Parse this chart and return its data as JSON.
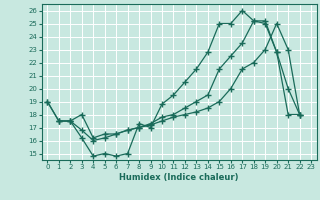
{
  "xlabel": "Humidex (Indice chaleur)",
  "bg_color": "#c8e8e0",
  "line_color": "#1a6b5a",
  "grid_color": "#ffffff",
  "xlim": [
    -0.5,
    23.5
  ],
  "ylim": [
    14.5,
    26.5
  ],
  "yticks": [
    15,
    16,
    17,
    18,
    19,
    20,
    21,
    22,
    23,
    24,
    25,
    26
  ],
  "xticks": [
    0,
    1,
    2,
    3,
    4,
    5,
    6,
    7,
    8,
    9,
    10,
    11,
    12,
    13,
    14,
    15,
    16,
    17,
    18,
    19,
    20,
    21,
    22,
    23
  ],
  "line1_x": [
    0,
    1,
    2,
    3,
    4,
    5,
    6,
    7,
    8,
    9,
    10,
    11,
    12,
    13,
    14,
    15,
    16,
    17,
    18,
    19,
    20,
    21,
    22
  ],
  "line1_y": [
    19.0,
    17.5,
    17.5,
    16.2,
    14.8,
    15.0,
    14.8,
    15.0,
    17.3,
    17.0,
    18.8,
    19.5,
    20.5,
    21.5,
    22.8,
    25.0,
    25.0,
    26.0,
    25.2,
    25.2,
    22.8,
    20.0,
    18.0
  ],
  "line2_x": [
    0,
    1,
    2,
    3,
    4,
    5,
    6,
    7,
    8,
    9,
    10,
    11,
    12,
    13,
    14,
    15,
    16,
    17,
    18,
    19,
    20,
    21,
    22
  ],
  "line2_y": [
    19.0,
    17.5,
    17.5,
    18.0,
    16.2,
    16.5,
    16.5,
    16.8,
    17.0,
    17.3,
    17.8,
    18.0,
    18.5,
    19.0,
    19.5,
    21.5,
    22.5,
    23.5,
    25.2,
    25.0,
    22.8,
    18.0,
    18.0
  ],
  "line3_x": [
    1,
    2,
    3,
    4,
    5,
    6,
    7,
    8,
    9,
    10,
    11,
    12,
    13,
    14,
    15,
    16,
    17,
    18,
    19,
    20,
    21,
    22
  ],
  "line3_y": [
    17.5,
    17.5,
    16.8,
    16.0,
    16.2,
    16.5,
    16.8,
    17.0,
    17.2,
    17.5,
    17.8,
    18.0,
    18.2,
    18.5,
    19.0,
    20.0,
    21.5,
    22.0,
    23.0,
    25.0,
    23.0,
    18.0
  ]
}
